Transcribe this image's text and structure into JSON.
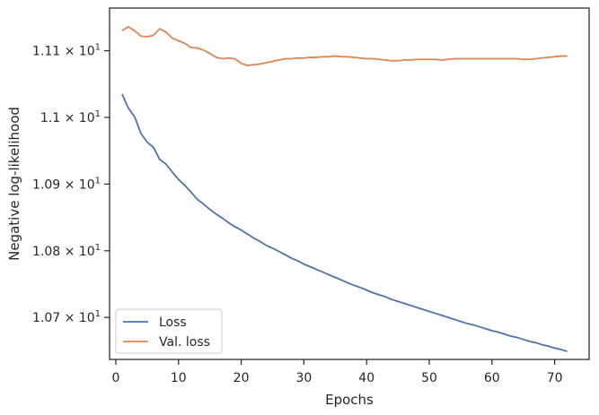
{
  "chart_data": {
    "type": "line",
    "xlabel": "Epochs",
    "ylabel": "Negative log-likelihood",
    "xlim": [
      -1,
      75.5
    ],
    "ylim": [
      10.637,
      11.164
    ],
    "x_ticks": [
      0,
      10,
      20,
      30,
      40,
      50,
      60,
      70
    ],
    "y_ticks": [
      {
        "value": 10.7,
        "mantissa": "1.07",
        "exponent": "1"
      },
      {
        "value": 10.8,
        "mantissa": "1.08",
        "exponent": "1"
      },
      {
        "value": 10.9,
        "mantissa": "1.09",
        "exponent": "1"
      },
      {
        "value": 11.0,
        "mantissa": "1.1",
        "exponent": "1"
      },
      {
        "value": 11.1,
        "mantissa": "1.11",
        "exponent": "1"
      }
    ],
    "grid": false,
    "legend_position": "lower-left",
    "series": [
      {
        "name": "Loss",
        "color": "#4c72b0",
        "x": [
          1,
          2,
          3,
          4,
          5,
          6,
          7,
          8,
          9,
          10,
          11,
          12,
          13,
          14,
          15,
          16,
          17,
          18,
          19,
          20,
          21,
          22,
          23,
          24,
          25,
          26,
          27,
          28,
          29,
          30,
          31,
          32,
          33,
          34,
          35,
          36,
          37,
          38,
          39,
          40,
          41,
          42,
          43,
          44,
          45,
          46,
          47,
          48,
          49,
          50,
          51,
          52,
          53,
          54,
          55,
          56,
          57,
          58,
          59,
          60,
          61,
          62,
          63,
          64,
          65,
          66,
          67,
          68,
          69,
          70,
          71,
          72
        ],
        "values": [
          11.035,
          11.014,
          11.001,
          10.976,
          10.963,
          10.955,
          10.937,
          10.93,
          10.918,
          10.907,
          10.898,
          10.888,
          10.877,
          10.87,
          10.862,
          10.855,
          10.849,
          10.842,
          10.836,
          10.831,
          10.825,
          10.819,
          10.814,
          10.808,
          10.804,
          10.799,
          10.794,
          10.789,
          10.785,
          10.78,
          10.776,
          10.772,
          10.768,
          10.764,
          10.76,
          10.756,
          10.752,
          10.748,
          10.745,
          10.741,
          10.737,
          10.734,
          10.731,
          10.727,
          10.724,
          10.721,
          10.718,
          10.715,
          10.712,
          10.709,
          10.706,
          10.703,
          10.7,
          10.697,
          10.694,
          10.691,
          10.689,
          10.686,
          10.683,
          10.68,
          10.678,
          10.675,
          10.672,
          10.67,
          10.667,
          10.664,
          10.662,
          10.659,
          10.657,
          10.654,
          10.652,
          10.649
        ]
      },
      {
        "name": "Val. loss",
        "color": "#dd8452",
        "x": [
          1,
          2,
          3,
          4,
          5,
          6,
          7,
          8,
          9,
          10,
          11,
          12,
          13,
          14,
          15,
          16,
          17,
          18,
          19,
          20,
          21,
          22,
          23,
          24,
          25,
          26,
          27,
          28,
          29,
          30,
          31,
          32,
          33,
          34,
          35,
          36,
          37,
          38,
          39,
          40,
          41,
          42,
          43,
          44,
          45,
          46,
          47,
          48,
          49,
          50,
          51,
          52,
          53,
          54,
          55,
          56,
          57,
          58,
          59,
          60,
          61,
          62,
          63,
          64,
          65,
          66,
          67,
          68,
          69,
          70,
          71,
          72
        ],
        "values": [
          11.13,
          11.136,
          11.13,
          11.122,
          11.121,
          11.123,
          11.133,
          11.128,
          11.119,
          11.115,
          11.111,
          11.105,
          11.104,
          11.101,
          11.096,
          11.09,
          11.088,
          11.089,
          11.088,
          11.081,
          11.078,
          11.079,
          11.08,
          11.082,
          11.084,
          11.086,
          11.088,
          11.088,
          11.089,
          11.089,
          11.09,
          11.09,
          11.091,
          11.091,
          11.092,
          11.091,
          11.091,
          11.09,
          11.089,
          11.088,
          11.088,
          11.087,
          11.086,
          11.085,
          11.085,
          11.086,
          11.086,
          11.087,
          11.087,
          11.087,
          11.087,
          11.086,
          11.087,
          11.088,
          11.088,
          11.088,
          11.088,
          11.088,
          11.088,
          11.088,
          11.088,
          11.088,
          11.088,
          11.088,
          11.087,
          11.087,
          11.088,
          11.089,
          11.09,
          11.091,
          11.092,
          11.092
        ]
      }
    ]
  }
}
